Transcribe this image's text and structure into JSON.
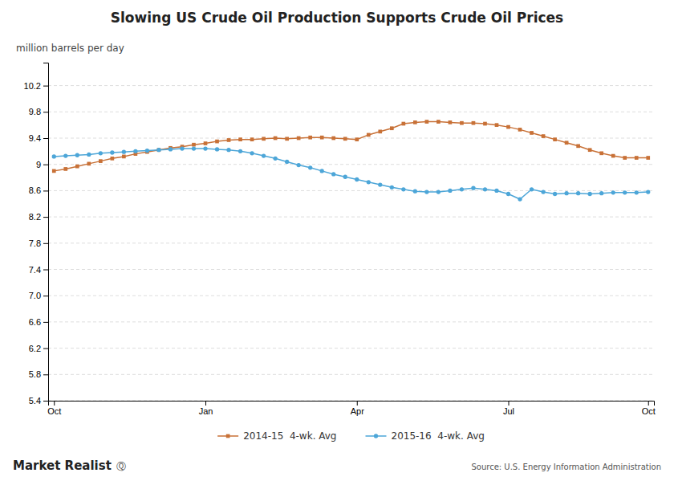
{
  "chart_data": {
    "type": "line",
    "title": "Slowing US Crude Oil Production Supports Crude Oil Prices",
    "y_label": "million barrels per day",
    "annotations": [
      "Market Realist",
      "Ⓠ",
      "Source: U.S. Energy Information Administration"
    ],
    "categories": [
      "Oct",
      null,
      null,
      null,
      null,
      null,
      null,
      null,
      null,
      null,
      null,
      null,
      null,
      "Jan",
      null,
      null,
      null,
      null,
      null,
      null,
      null,
      null,
      null,
      null,
      null,
      null,
      "Apr",
      null,
      null,
      null,
      null,
      null,
      null,
      null,
      null,
      null,
      null,
      null,
      null,
      "Jul",
      null,
      null,
      null,
      null,
      null,
      null,
      null,
      null,
      null,
      null,
      null,
      "Oct"
    ],
    "series": [
      {
        "name": "2014-15  4-wk. Avg",
        "color": "#c87137",
        "marker": "square",
        "values": [
          8.9,
          8.93,
          8.97,
          9.01,
          9.05,
          9.09,
          9.12,
          9.16,
          9.19,
          9.22,
          9.25,
          9.27,
          9.3,
          9.32,
          9.35,
          9.37,
          9.38,
          9.38,
          9.39,
          9.4,
          9.39,
          9.4,
          9.41,
          9.41,
          9.4,
          9.39,
          9.38,
          9.45,
          9.5,
          9.55,
          9.62,
          9.64,
          9.65,
          9.65,
          9.64,
          9.63,
          9.63,
          9.62,
          9.6,
          9.57,
          9.53,
          9.48,
          9.43,
          9.38,
          9.33,
          9.28,
          9.22,
          9.17,
          9.13,
          9.1,
          9.1,
          9.1
        ]
      },
      {
        "name": "2015-16  4-wk. Avg",
        "color": "#4da6d8",
        "marker": "circle",
        "values": [
          9.12,
          9.13,
          9.14,
          9.15,
          9.17,
          9.18,
          9.19,
          9.2,
          9.21,
          9.22,
          9.23,
          9.24,
          9.24,
          9.24,
          9.23,
          9.22,
          9.2,
          9.17,
          9.13,
          9.09,
          9.04,
          8.99,
          8.95,
          8.9,
          8.85,
          8.81,
          8.77,
          8.73,
          8.69,
          8.65,
          8.62,
          8.59,
          8.58,
          8.58,
          8.6,
          8.62,
          8.64,
          8.62,
          8.6,
          8.55,
          8.47,
          8.62,
          8.58,
          8.55,
          8.56,
          8.56,
          8.55,
          8.56,
          8.57,
          8.57,
          8.57,
          8.58
        ]
      }
    ],
    "ylim": [
      5.4,
      10.55
    ],
    "yticks": [
      5.4,
      5.8,
      6.2,
      6.6,
      {
        "value": 7.0,
        "label": "7.0"
      },
      7.4,
      7.8,
      8.2,
      8.6,
      9.0,
      9.4,
      9.8,
      10.2
    ],
    "grid": true,
    "legend": "bottom"
  }
}
